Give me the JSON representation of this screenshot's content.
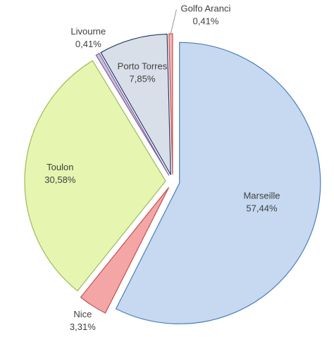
{
  "chart_data": {
    "type": "pie",
    "categories": [
      "Marseille",
      "Nice",
      "Toulon",
      "Livourne",
      "Porto Torres",
      "Golfo Aranci"
    ],
    "values": [
      57.44,
      3.31,
      30.58,
      0.41,
      7.85,
      0.41
    ],
    "value_labels": [
      "57,44%",
      "3,31%",
      "30,58%",
      "0,41%",
      "7,85%",
      "0,41%"
    ],
    "colors": [
      "#c6d9f1",
      "#f4a6a6",
      "#e6f5b0",
      "#ccc0da",
      "#d9dfe8",
      "#f2b8b8"
    ],
    "stroke_colors": [
      "#4a7ebb",
      "#c0504d",
      "#9bbb59",
      "#7f5f9f",
      "#1f3864",
      "#c0504d"
    ]
  }
}
